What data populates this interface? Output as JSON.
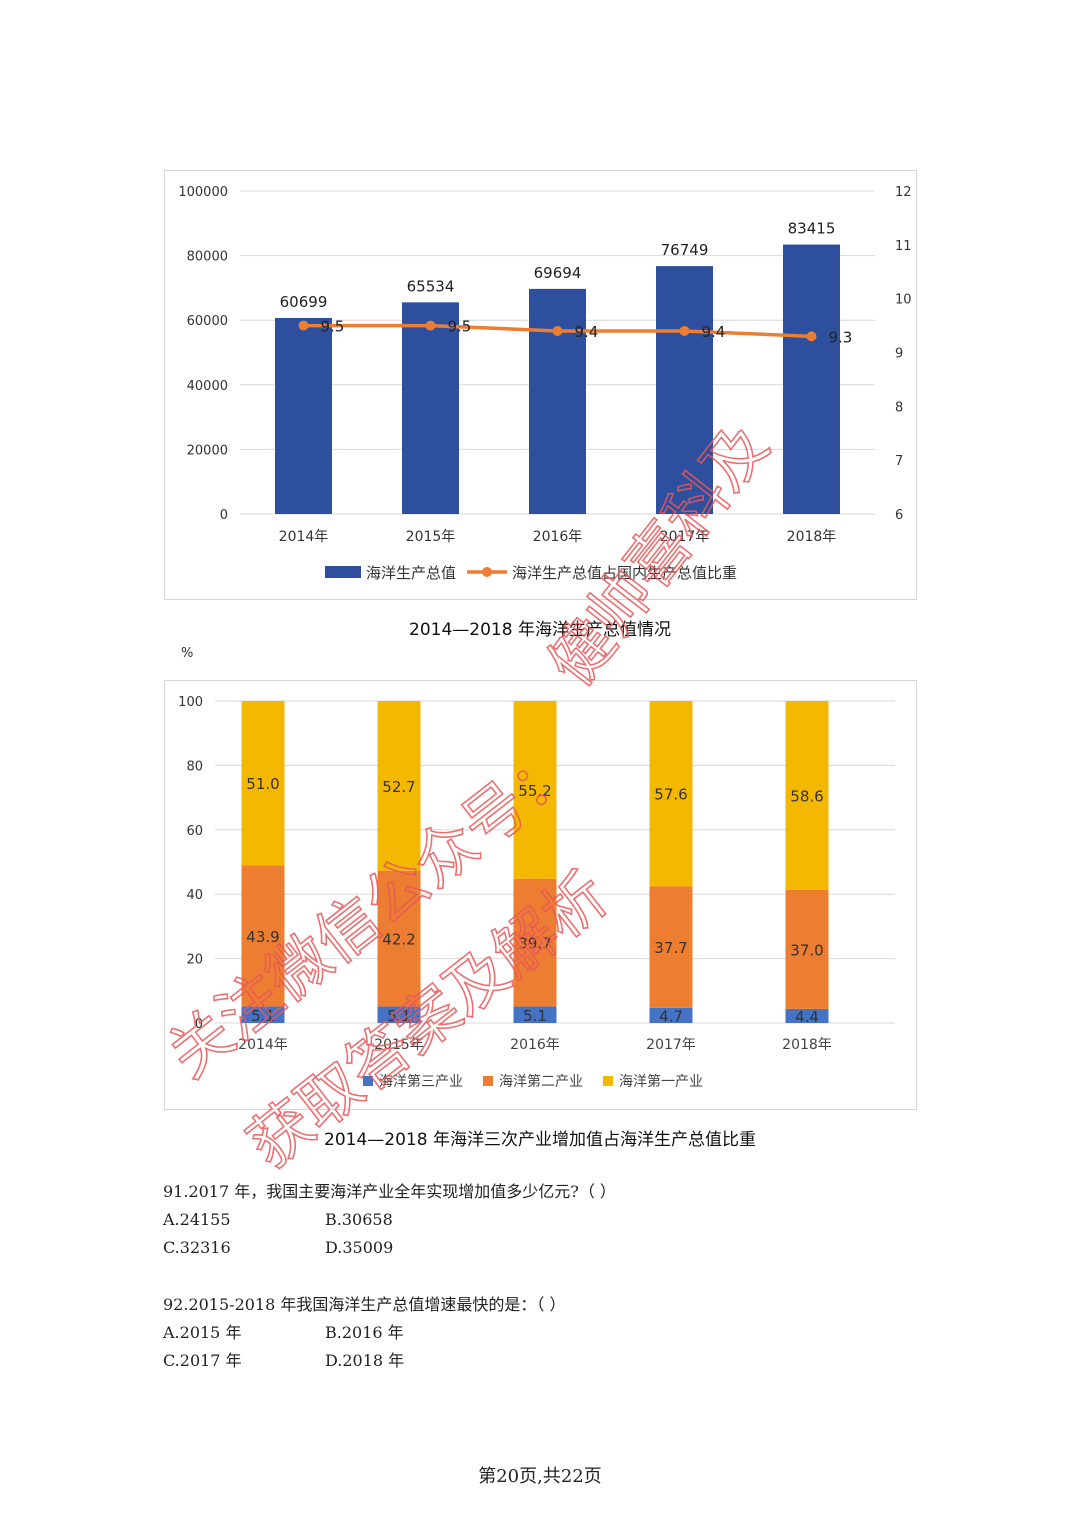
{
  "chart_data": [
    {
      "type": "bar",
      "categories": [
        "2014年",
        "2015年",
        "2016年",
        "2017年",
        "2018年"
      ],
      "series": [
        {
          "name": "海洋生产总值",
          "kind": "bar",
          "axis": "left",
          "color": "#2e4f9e",
          "values": [
            60699,
            65534,
            69694,
            76749,
            83415
          ],
          "labels": [
            "60699",
            "65534",
            "69694",
            "76749",
            "83415"
          ]
        },
        {
          "name": "海洋生产总值占国内生产总值比重",
          "kind": "line",
          "axis": "right",
          "color": "#ed7d31",
          "values": [
            9.5,
            9.5,
            9.4,
            9.4,
            9.3
          ],
          "labels": [
            "9.5",
            "9.5",
            "9.4",
            "9.4",
            "9.3"
          ]
        }
      ],
      "yticks": [
        "0",
        "20000",
        "40000",
        "60000",
        "80000",
        "100000"
      ],
      "ylim": [
        0,
        100000
      ],
      "y2ticks": [
        "6",
        "7",
        "8",
        "9",
        "10",
        "11",
        "12"
      ],
      "y2lim": [
        6,
        12
      ],
      "grid": true,
      "legend_position": "bottom",
      "title": "2014—2018 年海洋生产总值情况"
    },
    {
      "type": "bar",
      "stacked": true,
      "categories": [
        "2014年",
        "2015年",
        "2016年",
        "2017年",
        "2018年"
      ],
      "series": [
        {
          "name": "海洋第三产业",
          "color": "#4472c4",
          "values": [
            5.1,
            5.1,
            5.1,
            4.7,
            4.4
          ],
          "labels": [
            "5.1",
            "5.1",
            "5.1",
            "4.7",
            "4.4"
          ]
        },
        {
          "name": "海洋第二产业",
          "color": "#ed7d31",
          "values": [
            43.9,
            42.2,
            39.7,
            37.7,
            37.0
          ],
          "labels": [
            "43.9",
            "42.2",
            "39.7",
            "37.7",
            "37.0"
          ]
        },
        {
          "name": "海洋第一产业",
          "color": "#f5b800",
          "values": [
            51.0,
            52.7,
            55.2,
            57.6,
            58.6
          ],
          "labels": [
            "51.0",
            "52.7",
            "55.2",
            "57.6",
            "58.6"
          ]
        }
      ],
      "yticks": [
        "0",
        "20",
        "40",
        "60",
        "80",
        "100"
      ],
      "ylim": [
        0,
        100
      ],
      "ylabel": "%",
      "grid": true,
      "legend_position": "bottom",
      "title": "2014—2018 年海洋三次产业增加值占海洋生产总值比重"
    }
  ],
  "questions": {
    "q91": {
      "stem": "91.2017 年，我国主要海洋产业全年实现增加值多少亿元?（ ）",
      "a": "A.24155",
      "b": "B.30658",
      "c": "C.32316",
      "d": "D.35009"
    },
    "q92": {
      "stem": "92.2015-2018 年我国海洋生产总值增速最快的是：（ ）",
      "a": "A.2015 年",
      "b": "B.2016 年",
      "c": "C.2017 年",
      "d": "D.2018 年"
    }
  },
  "footer": "第20页,共22页",
  "watermark": {
    "color": "#e8585a",
    "lines": [
      "关注微信公众号：",
      "获取答案及解析",
      "健帅喜科及"
    ]
  }
}
